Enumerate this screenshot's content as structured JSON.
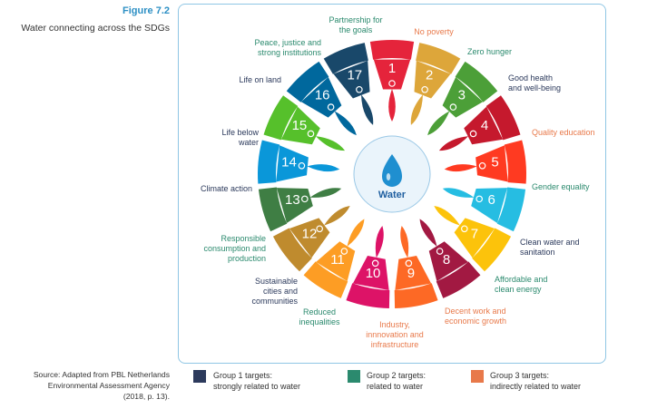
{
  "figure": {
    "number": "Figure 7.2",
    "title": "Water connecting across the SDGs"
  },
  "center_label": "Water",
  "sdgs": [
    {
      "n": "1",
      "label": "No poverty",
      "color": "#e5243b",
      "group": 3
    },
    {
      "n": "2",
      "label": "Zero hunger",
      "color": "#dda63a",
      "group": 2
    },
    {
      "n": "3",
      "label": "Good health and well-being",
      "color": "#4c9f38",
      "group": 1
    },
    {
      "n": "4",
      "label": "Quality education",
      "color": "#c5192d",
      "group": 3
    },
    {
      "n": "5",
      "label": "Gender equality",
      "color": "#ff3a21",
      "group": 2
    },
    {
      "n": "6",
      "label": "Clean water and sanitation",
      "color": "#26bde2",
      "group": 1
    },
    {
      "n": "7",
      "label": "Affordable and clean energy",
      "color": "#fcc30b",
      "group": 2
    },
    {
      "n": "8",
      "label": "Decent work and economic growth",
      "color": "#a21942",
      "group": 3
    },
    {
      "n": "9",
      "label": "Industry, innnovation and infrastructure",
      "color": "#fd6925",
      "group": 3
    },
    {
      "n": "10",
      "label": "Reduced inequalities",
      "color": "#dd1367",
      "group": 2
    },
    {
      "n": "11",
      "label": "Sustainable cities and communities",
      "color": "#fd9d24",
      "group": 1
    },
    {
      "n": "12",
      "label": "Responsible consumption and production",
      "color": "#bf8b2e",
      "group": 2
    },
    {
      "n": "13",
      "label": "Climate action",
      "color": "#3f7e44",
      "group": 1
    },
    {
      "n": "14",
      "label": "Life below water",
      "color": "#0a97d9",
      "group": 1
    },
    {
      "n": "15",
      "label": "Life on land",
      "color": "#56c02b",
      "group": 1
    },
    {
      "n": "16",
      "label": "Peace, justice and strong institutions",
      "color": "#00689d",
      "group": 2
    },
    {
      "n": "17",
      "label": "Partnership for the goals",
      "color": "#19486a",
      "group": 2
    }
  ],
  "legend": [
    {
      "label": "Group 1 targets: strongly related to water",
      "line1": "Group 1 targets:",
      "line2": "strongly related to water",
      "color": "#2c3a5c"
    },
    {
      "label": "Group 2 targets: related to water",
      "line1": "Group 2 targets:",
      "line2": "related to water",
      "color": "#2b8a6e"
    },
    {
      "label": "Group 3 targets: indirectly related to water",
      "line1": "Group 3 targets:",
      "line2": "indirectly related to water",
      "color": "#e8794a"
    }
  ],
  "source": {
    "line1": "Source: Adapted from PBL Netherlands",
    "line2": "Environmental Assessment Agency",
    "line3": "(2018, p. 13)."
  }
}
